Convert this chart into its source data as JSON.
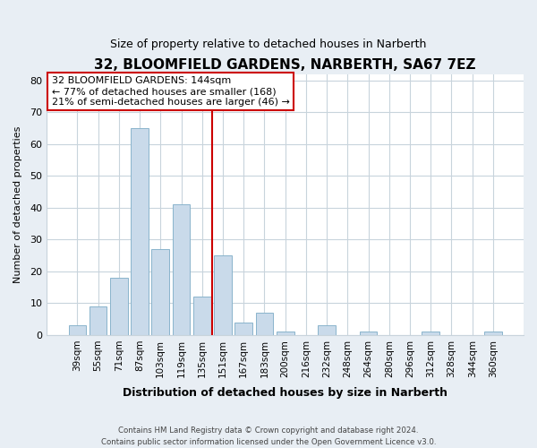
{
  "title": "32, BLOOMFIELD GARDENS, NARBERTH, SA67 7EZ",
  "subtitle": "Size of property relative to detached houses in Narberth",
  "xlabel": "Distribution of detached houses by size in Narberth",
  "ylabel": "Number of detached properties",
  "bar_labels": [
    "39sqm",
    "55sqm",
    "71sqm",
    "87sqm",
    "103sqm",
    "119sqm",
    "135sqm",
    "151sqm",
    "167sqm",
    "183sqm",
    "200sqm",
    "216sqm",
    "232sqm",
    "248sqm",
    "264sqm",
    "280sqm",
    "296sqm",
    "312sqm",
    "328sqm",
    "344sqm",
    "360sqm"
  ],
  "bar_values": [
    3,
    9,
    18,
    65,
    27,
    41,
    12,
    25,
    4,
    7,
    1,
    0,
    3,
    0,
    1,
    0,
    0,
    1,
    0,
    0,
    1
  ],
  "bar_color": "#c9daea",
  "bar_edge_color": "#8ab4cc",
  "vline_color": "#cc0000",
  "annotation_lines": [
    "32 BLOOMFIELD GARDENS: 144sqm",
    "← 77% of detached houses are smaller (168)",
    "21% of semi-detached houses are larger (46) →"
  ],
  "annotation_box_edge": "#cc0000",
  "ylim": [
    0,
    82
  ],
  "yticks": [
    0,
    10,
    20,
    30,
    40,
    50,
    60,
    70,
    80
  ],
  "footer_line1": "Contains HM Land Registry data © Crown copyright and database right 2024.",
  "footer_line2": "Contains public sector information licensed under the Open Government Licence v3.0.",
  "bg_color": "#e8eef4",
  "plot_bg_color": "#ffffff",
  "grid_color": "#c8d4dc"
}
